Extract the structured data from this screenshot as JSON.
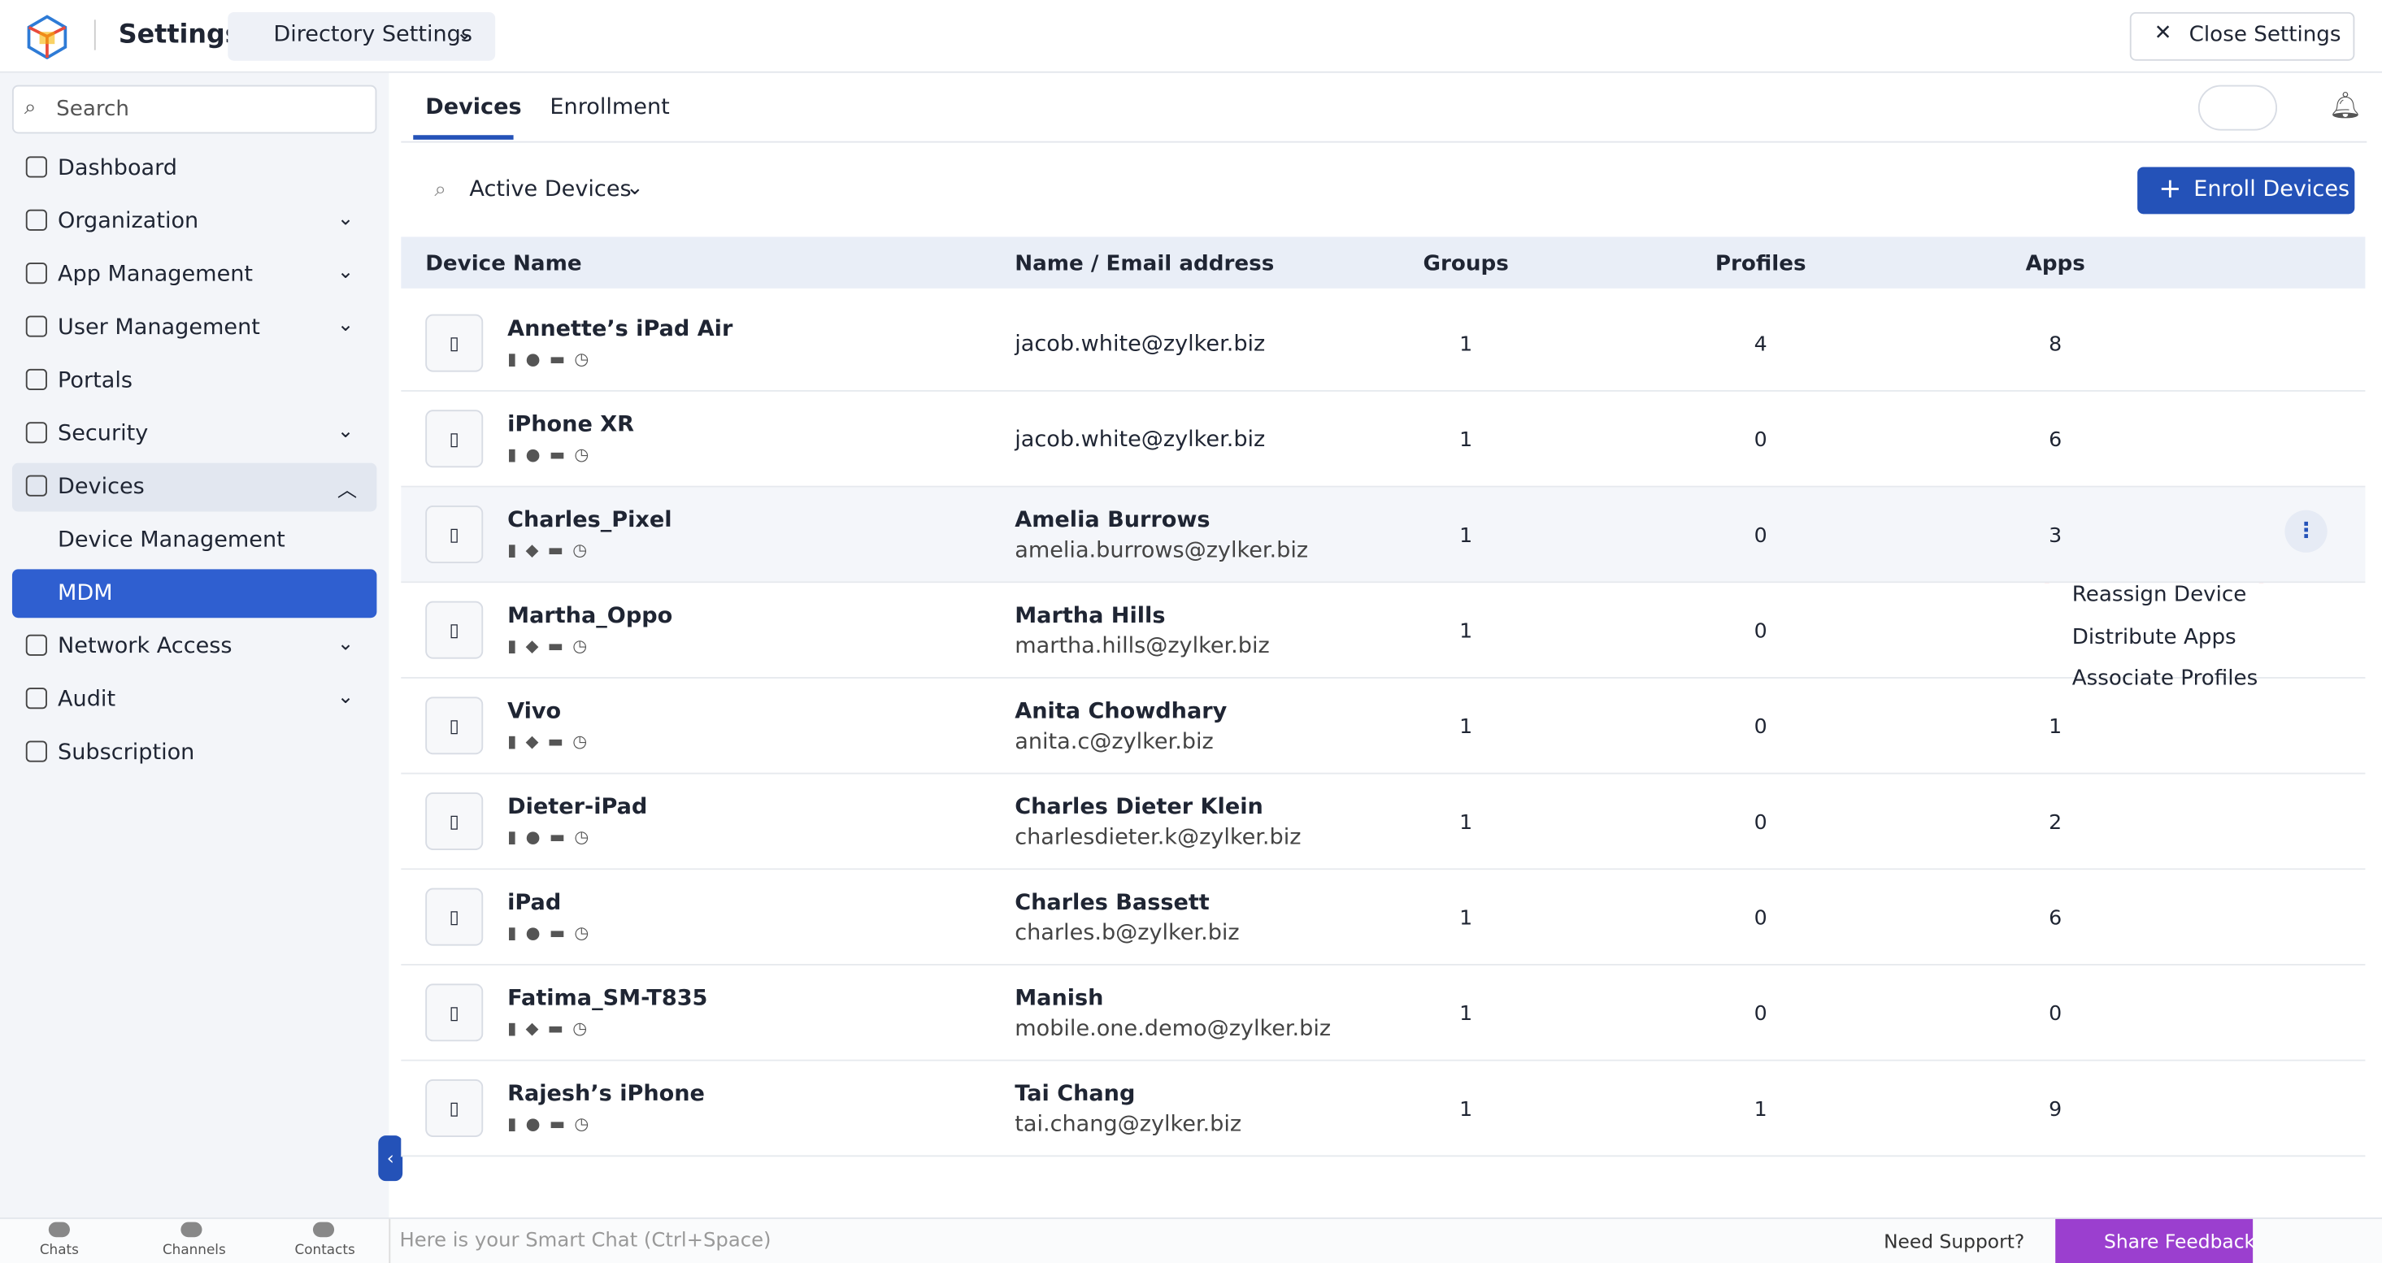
{
  "header": {
    "title": "Settings",
    "switcher": "Directory Settings",
    "close": "Close Settings"
  },
  "sidebar": {
    "search": "Search",
    "items": [
      {
        "label": "Dashboard"
      },
      {
        "label": "Organization",
        "expandable": true
      },
      {
        "label": "App Management",
        "expandable": true
      },
      {
        "label": "User Management",
        "expandable": true
      },
      {
        "label": "Portals"
      },
      {
        "label": "Security",
        "expandable": true
      },
      {
        "label": "Devices",
        "expandable": true,
        "open": true
      },
      {
        "label": "Device Management",
        "sub": true
      },
      {
        "label": "MDM",
        "sub": true,
        "selected": true
      },
      {
        "label": "Network Access",
        "expandable": true
      },
      {
        "label": "Audit",
        "expandable": true
      },
      {
        "label": "Subscription"
      }
    ]
  },
  "tabs": [
    "Devices",
    "Enrollment"
  ],
  "filter": "Active Devices",
  "enroll_button": "Enroll Devices",
  "table": {
    "columns": [
      "Device Name",
      "Name / Email address",
      "Groups",
      "Profiles",
      "Apps"
    ],
    "rows": [
      {
        "device": "Annette’s iPad Air",
        "platform": "apple",
        "email": "jacob.white@zylker.biz",
        "groups": "1",
        "profiles": "4",
        "apps": "8"
      },
      {
        "device": "iPhone XR",
        "platform": "apple",
        "email": "jacob.white@zylker.biz",
        "groups": "1",
        "profiles": "0",
        "apps": "6"
      },
      {
        "device": "Charles_Pixel",
        "platform": "android",
        "name": "Amelia Burrows",
        "email": "amelia.burrows@zylker.biz",
        "groups": "1",
        "profiles": "0",
        "apps": "3",
        "hover": true
      },
      {
        "device": "Martha_Oppo",
        "platform": "android",
        "name": "Martha Hills",
        "email": "martha.hills@zylker.biz",
        "groups": "1",
        "profiles": "0"
      },
      {
        "device": "Vivo",
        "platform": "android",
        "name": "Anita Chowdhary",
        "email": "anita.c@zylker.biz",
        "groups": "1",
        "profiles": "0",
        "apps": "1"
      },
      {
        "device": "Dieter-iPad",
        "platform": "apple",
        "name": "Charles Dieter Klein",
        "email": "charlesdieter.k@zylker.biz",
        "groups": "1",
        "profiles": "0",
        "apps": "2"
      },
      {
        "device": "iPad",
        "platform": "apple",
        "name": "Charles Bassett",
        "email": "charles.b@zylker.biz",
        "groups": "1",
        "profiles": "0",
        "apps": "6"
      },
      {
        "device": "Fatima_SM-T835",
        "platform": "android",
        "name": "Manish",
        "email": "mobile.one.demo@zylker.biz",
        "groups": "1",
        "profiles": "0",
        "apps": "0"
      },
      {
        "device": "Rajesh’s iPhone",
        "platform": "apple",
        "name": "Tai Chang",
        "email": "tai.chang@zylker.biz",
        "groups": "1",
        "profiles": "1",
        "apps": "9"
      }
    ]
  },
  "menu": [
    "Reassign Device",
    "Distribute Apps",
    "Associate Profiles"
  ],
  "bottom_bar": {
    "tabs": [
      "Chats",
      "Channels",
      "Contacts"
    ],
    "chat_placeholder": "Here is your Smart Chat (Ctrl+Space)",
    "support": "Need Support?",
    "feedback": "Share Feedback"
  }
}
